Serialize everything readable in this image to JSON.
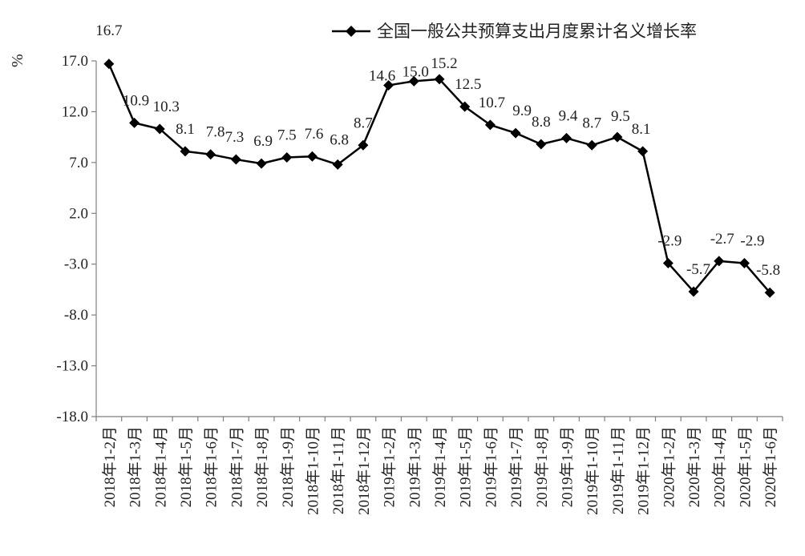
{
  "chart_data": {
    "type": "line",
    "title": "",
    "xlabel": "",
    "ylabel": "%",
    "ylim": [
      -18,
      17
    ],
    "yticks": [
      17.0,
      12.0,
      7.0,
      2.0,
      -3.0,
      -8.0,
      -13.0,
      -18.0
    ],
    "ytick_labels": [
      "17.0",
      "12.0",
      "7.0",
      "2.0",
      "-3.0",
      "-8.0",
      "-13.0",
      "-18.0"
    ],
    "grid": false,
    "legend_position": "top-right",
    "categories": [
      "2018年1-2月",
      "2018年1-3月",
      "2018年1-4月",
      "2018年1-5月",
      "2018年1-6月",
      "2018年1-7月",
      "2018年1-8月",
      "2018年1-9月",
      "2018年1-10月",
      "2018年1-11月",
      "2018年1-12月",
      "2019年1-2月",
      "2019年1-3月",
      "2019年1-4月",
      "2019年1-5月",
      "2019年1-6月",
      "2019年1-7月",
      "2019年1-8月",
      "2019年1-9月",
      "2019年1-10月",
      "2019年1-11月",
      "2019年1-12月",
      "2020年1-2月",
      "2020年1-3月",
      "2020年1-4月",
      "2020年1-5月",
      "2020年1-6月"
    ],
    "series": [
      {
        "name": "全国一般公共预算支出月度累计名义增长率",
        "color": "#000000",
        "marker": "diamond",
        "values": [
          16.7,
          10.9,
          10.3,
          8.1,
          7.8,
          7.3,
          6.9,
          7.5,
          7.6,
          6.8,
          8.7,
          14.6,
          15.0,
          15.2,
          12.5,
          10.7,
          9.9,
          8.8,
          9.4,
          8.7,
          9.5,
          8.1,
          -2.9,
          -5.7,
          -2.7,
          -2.9,
          -5.8
        ],
        "labels": [
          "16.7",
          "10.9",
          "10.3",
          "8.1",
          "7.8",
          "7.3",
          "6.9",
          "7.5",
          "7.6",
          "6.8",
          "8.7",
          "14.6",
          "15.0",
          "15.2",
          "12.5",
          "10.7",
          "9.9",
          "8.8",
          "9.4",
          "8.7",
          "9.5",
          "8.1",
          "-2.9",
          "-5.7",
          "-2.7",
          "-2.9",
          "-5.8"
        ]
      }
    ]
  }
}
